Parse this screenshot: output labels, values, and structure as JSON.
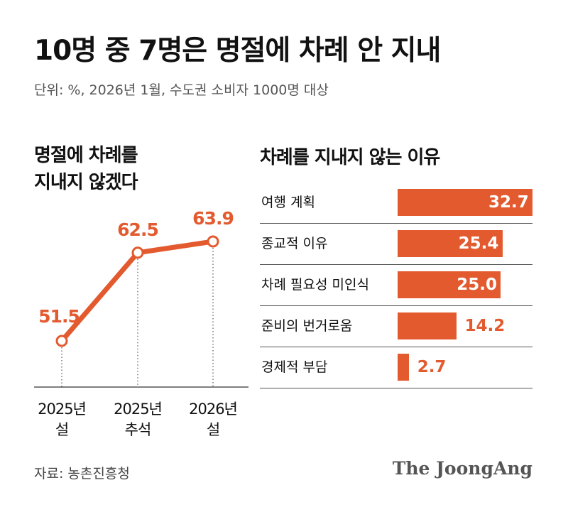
{
  "header": {
    "title": "10명 중 7명은 명절에 차례 안 지내",
    "subtitle": "단위: %, 2026년 1월, 수도권 소비자 1000명 대상"
  },
  "colors": {
    "accent": "#e35a2f",
    "text": "#111111",
    "muted": "#555555"
  },
  "chart_data": [
    {
      "type": "line",
      "title_lines": [
        "명절에 차례를",
        "지내지 않겠다"
      ],
      "categories": [
        [
          "2025년",
          "설"
        ],
        [
          "2025년",
          "추석"
        ],
        [
          "2026년",
          "설"
        ]
      ],
      "values": [
        51.5,
        62.5,
        63.9
      ],
      "value_labels": [
        "51.5",
        "62.5",
        "63.9"
      ]
    },
    {
      "type": "bar",
      "orientation": "horizontal",
      "title": "차례를 지내지 않는 이유",
      "categories": [
        "여행 계획",
        "종교적 이유",
        "차례 필요성 미인식",
        "준비의 번거로움",
        "경제적 부담"
      ],
      "values": [
        32.7,
        25.4,
        25.0,
        14.2,
        2.7
      ],
      "value_labels": [
        "32.7",
        "25.4",
        "25.0",
        "14.2",
        "2.7"
      ]
    }
  ],
  "footer": {
    "source": "자료: 농촌진흥청",
    "brand": "The JoongAng"
  }
}
